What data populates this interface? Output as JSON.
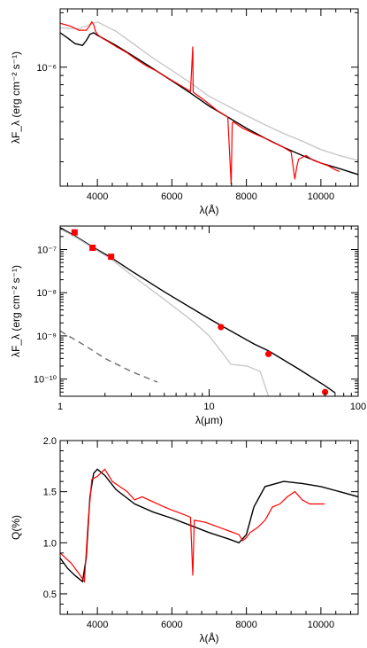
{
  "chart_data": [
    {
      "type": "line",
      "panel": "top",
      "xlabel": "λ(Å)",
      "ylabel": "λF_λ (erg cm⁻² s⁻¹)",
      "xlim": [
        3000,
        11000
      ],
      "ylim": [
        2.2e-07,
        2.1e-06
      ],
      "y_scale": "log",
      "x_ticks": [
        4000,
        6000,
        8000,
        10000
      ],
      "x_tick_labels": [
        "4000",
        "6000",
        "8000",
        "10000"
      ],
      "y_ticks": [
        1e-06
      ],
      "y_tick_labels": [
        "10⁻⁶"
      ],
      "series": [
        {
          "color": "#c8c8c8",
          "x": [
            3000,
            3500,
            3800,
            4000,
            4500,
            5000,
            5500,
            6000,
            6500,
            7000,
            7500,
            8000,
            8500,
            9000,
            9500,
            10000,
            10500,
            11000
          ],
          "y": [
            1.65e-06,
            1.63e-06,
            1.72e-06,
            1.78e-06,
            1.58e-06,
            1.33e-06,
            1.12e-06,
            9.6e-07,
            8.2e-07,
            6.9e-07,
            6.1e-07,
            5.4e-07,
            4.8e-07,
            4.3e-07,
            3.9e-07,
            3.5e-07,
            3.25e-07,
            3.05e-07
          ]
        },
        {
          "color": "#000000",
          "x": [
            3000,
            3200,
            3400,
            3600,
            3700,
            3800,
            3900,
            4000,
            4500,
            5000,
            5500,
            6000,
            6500,
            7000,
            7500,
            8000,
            8500,
            9000,
            9500,
            10000,
            10500,
            11000
          ],
          "y": [
            1.55e-06,
            1.45e-06,
            1.35e-06,
            1.32e-06,
            1.4e-06,
            1.52e-06,
            1.55e-06,
            1.5e-06,
            1.32e-06,
            1.14e-06,
            9.8e-07,
            8.4e-07,
            7.2e-07,
            6.1e-07,
            5.3e-07,
            4.6e-07,
            4.05e-07,
            3.6e-07,
            3.25e-07,
            2.95e-07,
            2.75e-07,
            2.55e-07
          ]
        },
        {
          "color": "#ff0000",
          "x": [
            3000,
            3300,
            3500,
            3700,
            3800,
            3850,
            3900,
            3950,
            4000,
            4100,
            4300,
            4500,
            4800,
            5000,
            5300,
            5600,
            5900,
            6200,
            6500,
            6560,
            6570,
            6600,
            6900,
            7200,
            7500,
            7590,
            7620,
            7650,
            7700,
            7900,
            8200,
            8500,
            8700,
            9000,
            9200,
            9300,
            9350,
            9400,
            9600,
            9800,
            10000,
            10200,
            10400,
            10500
          ],
          "y": [
            1.75e-06,
            1.68e-06,
            1.6e-06,
            1.6e-06,
            1.7e-06,
            1.78e-06,
            1.72e-06,
            1.58e-06,
            1.52e-06,
            1.46e-06,
            1.38e-06,
            1.3e-06,
            1.2e-06,
            1.12e-06,
            1.02e-06,
            9.5e-07,
            8.7e-07,
            8e-07,
            7.35e-07,
            1.3e-06,
            7.3e-07,
            7.2e-07,
            6.5e-07,
            5.8e-07,
            5.3e-07,
            2.25e-07,
            4.9e-07,
            5e-07,
            4.9e-07,
            4.6e-07,
            4.3e-07,
            4.05e-07,
            3.85e-07,
            3.6e-07,
            3.4e-07,
            2.4e-07,
            2.8e-07,
            3.1e-07,
            3.25e-07,
            3.05e-07,
            2.95e-07,
            2.85e-07,
            2.7e-07,
            2.65e-07
          ]
        }
      ]
    },
    {
      "type": "line",
      "panel": "middle",
      "xlabel": "λ(μm)",
      "ylabel": "λF_λ (erg cm⁻² s⁻¹)",
      "xlim": [
        1,
        100
      ],
      "ylim": [
        4e-11,
        3.5e-07
      ],
      "x_scale": "log",
      "y_scale": "log",
      "x_ticks": [
        1,
        10,
        100
      ],
      "x_tick_labels": [
        "1",
        "10",
        "100"
      ],
      "y_ticks": [
        1e-10,
        1e-09,
        1e-08,
        1e-07
      ],
      "y_tick_labels": [
        "10⁻¹⁰",
        "10⁻⁹",
        "10⁻⁸",
        "10⁻⁷"
      ],
      "series": [
        {
          "color": "#000000",
          "x": [
            1.0,
            1.25,
            1.65,
            2.2,
            3.0,
            5.0,
            10.0,
            12.0,
            20.0,
            25.0,
            40.0,
            60.0,
            70.0
          ],
          "y": [
            3.2e-07,
            2.1e-07,
            1.15e-07,
            6.5e-08,
            3.2e-08,
            1.05e-08,
            2.5e-09,
            1.75e-09,
            6.5e-10,
            4.5e-10,
            1.7e-10,
            7e-11,
            4.8e-11
          ]
        },
        {
          "color": "#c8c8c8",
          "x": [
            1.0,
            1.25,
            1.65,
            2.2,
            3.0,
            5.0,
            8.0,
            10.0,
            12.0,
            14.0,
            18.0,
            22.0,
            25.0
          ],
          "y": [
            3e-07,
            2e-07,
            1.1e-07,
            6e-08,
            2.6e-08,
            7e-09,
            2e-09,
            1e-09,
            4.5e-10,
            2.2e-10,
            2e-10,
            1.5e-10,
            4e-11
          ]
        },
        {
          "color": "#6e6e6e",
          "dashed": true,
          "x": [
            1.0,
            1.5,
            2.0,
            3.0,
            4.0,
            4.5
          ],
          "y": [
            1.3e-09,
            5.7e-10,
            3e-10,
            1.5e-10,
            1e-10,
            8.5e-11
          ]
        }
      ],
      "points": [
        {
          "x": 1.25,
          "y": 2.5e-07,
          "marker": "square",
          "color": "#ff0000"
        },
        {
          "x": 1.65,
          "y": 1.1e-07,
          "marker": "square",
          "color": "#ff0000"
        },
        {
          "x": 2.2,
          "y": 6.8e-08,
          "marker": "square",
          "color": "#ff0000"
        },
        {
          "x": 12.0,
          "y": 1.6e-09,
          "marker": "circle",
          "color": "#ff0000"
        },
        {
          "x": 25.0,
          "y": 3.8e-10,
          "marker": "circle",
          "color": "#ff0000"
        },
        {
          "x": 60.0,
          "y": 5e-11,
          "marker": "circle",
          "color": "#ff0000"
        }
      ]
    },
    {
      "type": "line",
      "panel": "bottom",
      "xlabel": "λ(Å)",
      "ylabel": "Q(%)",
      "xlim": [
        3000,
        11000
      ],
      "ylim": [
        0.3,
        2.0
      ],
      "x_ticks": [
        4000,
        6000,
        8000,
        10000
      ],
      "x_tick_labels": [
        "4000",
        "6000",
        "8000",
        "10000"
      ],
      "y_ticks": [
        0.5,
        1.0,
        1.5,
        2.0
      ],
      "y_tick_labels": [
        "0.5",
        "1.0",
        "1.5",
        "2.0"
      ],
      "series": [
        {
          "color": "#000000",
          "x": [
            3000,
            3200,
            3400,
            3600,
            3700,
            3800,
            3900,
            4000,
            4200,
            4500,
            5000,
            5500,
            6000,
            6500,
            7000,
            7500,
            7800,
            8000,
            8200,
            8500,
            9000,
            9500,
            10000,
            10500,
            11000
          ],
          "y": [
            0.85,
            0.75,
            0.68,
            0.62,
            0.85,
            1.45,
            1.68,
            1.72,
            1.66,
            1.52,
            1.38,
            1.3,
            1.24,
            1.17,
            1.1,
            1.04,
            1.0,
            1.08,
            1.35,
            1.55,
            1.6,
            1.58,
            1.55,
            1.5,
            1.45
          ]
        },
        {
          "color": "#ff0000",
          "x": [
            3000,
            3300,
            3500,
            3650,
            3750,
            3850,
            4000,
            4200,
            4400,
            4600,
            4800,
            5000,
            5200,
            5500,
            5800,
            6000,
            6300,
            6500,
            6560,
            6600,
            6900,
            7200,
            7500,
            7800,
            7900,
            8000,
            8100,
            8300,
            8500,
            8700,
            8900,
            9100,
            9300,
            9500,
            9700,
            10000,
            10100
          ],
          "y": [
            0.9,
            0.8,
            0.7,
            0.62,
            1.2,
            1.62,
            1.65,
            1.72,
            1.6,
            1.55,
            1.5,
            1.42,
            1.45,
            1.4,
            1.35,
            1.32,
            1.28,
            1.25,
            0.68,
            1.22,
            1.2,
            1.16,
            1.12,
            1.08,
            1.02,
            1.05,
            1.1,
            1.15,
            1.22,
            1.35,
            1.38,
            1.45,
            1.5,
            1.42,
            1.38,
            1.38,
            1.38
          ]
        }
      ]
    }
  ]
}
